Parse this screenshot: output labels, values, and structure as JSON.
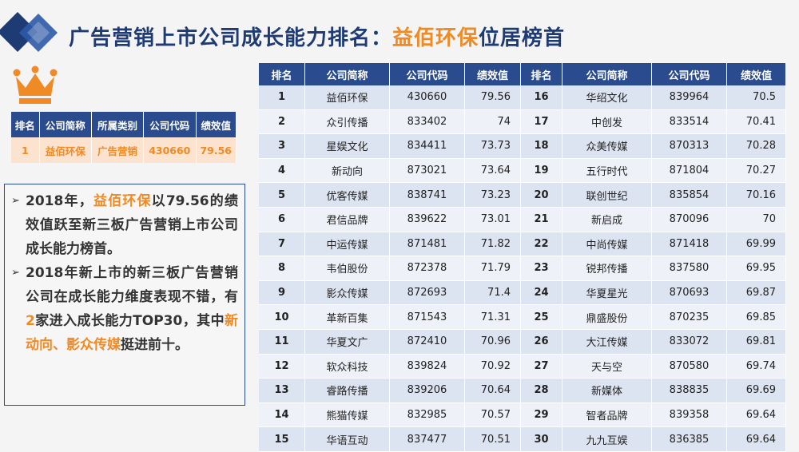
{
  "title": {
    "prefix": "广告营销上市公司成长能力排名：",
    "highlight": "益佰环保",
    "suffix": "位居榜首"
  },
  "colors": {
    "navy": "#2a4b8d",
    "orange": "#f08a24"
  },
  "icons": {
    "logo": "blue-diamonds-icon",
    "crown": "crown-icon"
  },
  "top_company": {
    "headers": [
      "排名",
      "公司简称",
      "所属类别",
      "公司代码",
      "绩效值"
    ],
    "row": [
      "1",
      "益佰环保",
      "广告营销",
      "430660",
      "79.56"
    ]
  },
  "notes": {
    "p1_a": "2018年，",
    "p1_b": "益佰环保",
    "p1_c": "以79.56的绩效值跃至新三板广告营销上市公司成长能力榜首。",
    "p2_a": "2018年新上市的新三板广告营销公司在成长能力维度表现不错，有",
    "p2_b": "2",
    "p2_c": "家进入成长能力TOP30，其中",
    "p2_d": "新动向、影众传媒",
    "p2_e": "挺进前十。"
  },
  "ranking": {
    "headers": [
      "排名",
      "公司简称",
      "公司代码",
      "绩效值",
      "排名",
      "公司简称",
      "公司代码",
      "绩效值"
    ],
    "rows": [
      [
        "1",
        "益佰环保",
        "430660",
        "79.56",
        "16",
        "华绍文化",
        "839964",
        "70.5"
      ],
      [
        "2",
        "众引传播",
        "833402",
        "74",
        "17",
        "中创发",
        "833514",
        "70.41"
      ],
      [
        "3",
        "星娱文化",
        "834411",
        "73.73",
        "18",
        "众美传媒",
        "870313",
        "70.28"
      ],
      [
        "4",
        "新动向",
        "873021",
        "73.64",
        "19",
        "五行时代",
        "871804",
        "70.27"
      ],
      [
        "5",
        "优客传媒",
        "838741",
        "73.23",
        "20",
        "联创世纪",
        "835854",
        "70.16"
      ],
      [
        "6",
        "君信品牌",
        "839622",
        "73.01",
        "21",
        "新启成",
        "870096",
        "70"
      ],
      [
        "7",
        "中运传媒",
        "871481",
        "71.82",
        "22",
        "中尚传媒",
        "871418",
        "69.99"
      ],
      [
        "8",
        "韦伯股份",
        "872378",
        "71.79",
        "23",
        "锐邦传播",
        "837580",
        "69.95"
      ],
      [
        "9",
        "影众传媒",
        "872693",
        "71.4",
        "24",
        "华夏星光",
        "870693",
        "69.87"
      ],
      [
        "10",
        "革新百集",
        "871543",
        "71.31",
        "25",
        "鼎盛股份",
        "870235",
        "69.85"
      ],
      [
        "11",
        "华夏文广",
        "872410",
        "70.96",
        "26",
        "大江传媒",
        "833072",
        "69.81"
      ],
      [
        "12",
        "软众科技",
        "839824",
        "70.92",
        "27",
        "天与空",
        "870580",
        "69.74"
      ],
      [
        "13",
        "睿路传播",
        "839206",
        "70.64",
        "28",
        "新媒体",
        "838835",
        "69.69"
      ],
      [
        "14",
        "熊猫传媒",
        "832985",
        "70.57",
        "29",
        "智者品牌",
        "839358",
        "69.64"
      ],
      [
        "15",
        "华语互动",
        "837477",
        "70.51",
        "30",
        "九九互娱",
        "836385",
        "69.64"
      ]
    ]
  }
}
